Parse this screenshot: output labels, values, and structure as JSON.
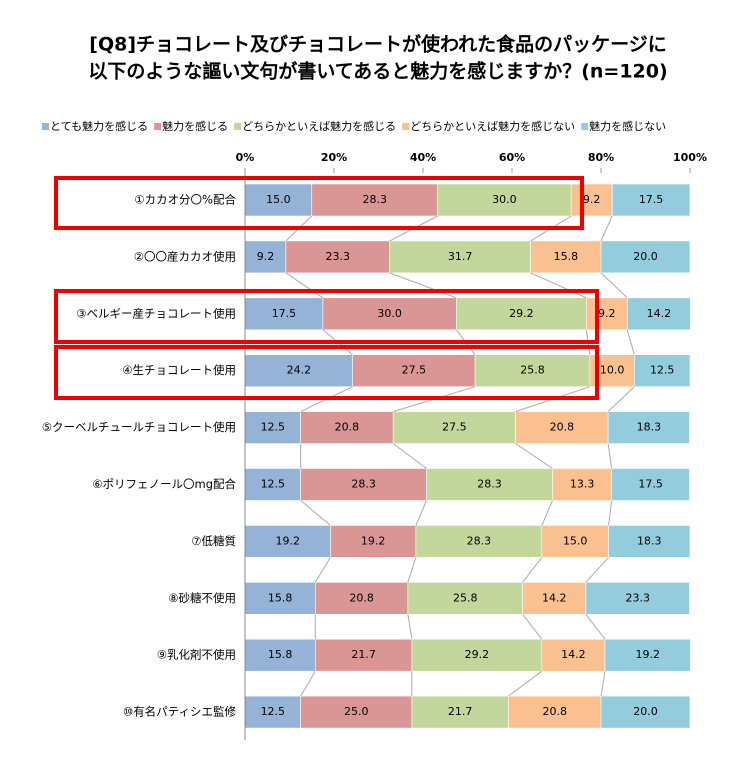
{
  "chart_data": {
    "type": "stacked-bar-horizontal",
    "title": [
      "[Q8]チョコレート及びチョコレートが使われた食品のパッケージに",
      "以下のような謳い文句が書いてあると魅力を感じますか？(n=120)"
    ],
    "categories": [
      "①カカオ分〇%配合",
      "②〇〇産カカオ使用",
      "③ベルギー産チョコレート使用",
      "④生チョコレート使用",
      "⑤クーベルチュールチョコレート使用",
      "⑥ポリフェノール〇mg配合",
      "⑦低糖質",
      "⑧砂糖不使用",
      "⑨乳化剤不使用",
      "⑩有名パティシエ監修"
    ],
    "xlim": [
      0,
      100
    ],
    "xticks": [
      {
        "value": 0,
        "label": "0%"
      },
      {
        "value": 20,
        "label": "20%"
      },
      {
        "value": 40,
        "label": "40%"
      },
      {
        "value": 60,
        "label": "60%"
      },
      {
        "value": 80,
        "label": "80%"
      },
      {
        "value": 100,
        "label": "100%"
      }
    ],
    "series": [
      {
        "name": "とても魅力を感じる",
        "color": "#95b3d7",
        "values": [
          15.0,
          9.2,
          17.5,
          24.2,
          12.5,
          12.5,
          19.2,
          15.8,
          15.8,
          12.5
        ],
        "value_labels": [
          "15.0",
          "9.2",
          "17.5",
          "24.2",
          "12.5",
          "12.5",
          "19.2",
          "15.8",
          "15.8",
          "12.5"
        ]
      },
      {
        "name": "魅力を感じる",
        "color": "#d99694",
        "values": [
          28.3,
          23.3,
          30.0,
          27.5,
          20.8,
          28.3,
          19.2,
          20.8,
          21.7,
          25.0
        ],
        "value_labels": [
          "28.3",
          "23.3",
          "30.0",
          "27.5",
          "20.8",
          "28.3",
          "19.2",
          "20.8",
          "21.7",
          "25.0"
        ]
      },
      {
        "name": "どちらかといえば魅力を感じる",
        "color": "#c3d69b",
        "values": [
          30.0,
          31.7,
          29.2,
          25.8,
          27.5,
          28.3,
          28.3,
          25.8,
          29.2,
          21.7
        ],
        "value_labels": [
          "30.0",
          "31.7",
          "29.2",
          "25.8",
          "27.5",
          "28.3",
          "28.3",
          "25.8",
          "29.2",
          "21.7"
        ]
      },
      {
        "name": "どちらかといえば魅力を感じない",
        "color": "#fac090",
        "values": [
          9.2,
          15.8,
          9.2,
          10.0,
          20.8,
          13.3,
          15.0,
          14.2,
          14.2,
          20.8
        ],
        "value_labels": [
          "9.2",
          "15.8",
          "9.2",
          "10.0",
          "20.8",
          "13.3",
          "15.0",
          "14.2",
          "14.2",
          "20.8"
        ]
      },
      {
        "name": "魅力を感じない",
        "color": "#93cddd",
        "values": [
          17.5,
          20.0,
          14.2,
          12.5,
          18.3,
          17.5,
          18.3,
          23.3,
          19.2,
          20.0
        ],
        "value_labels": [
          "17.5",
          "20.0",
          "14.2",
          "12.5",
          "18.3",
          "17.5",
          "18.3",
          "23.3",
          "19.2",
          "20.0"
        ]
      }
    ]
  }
}
